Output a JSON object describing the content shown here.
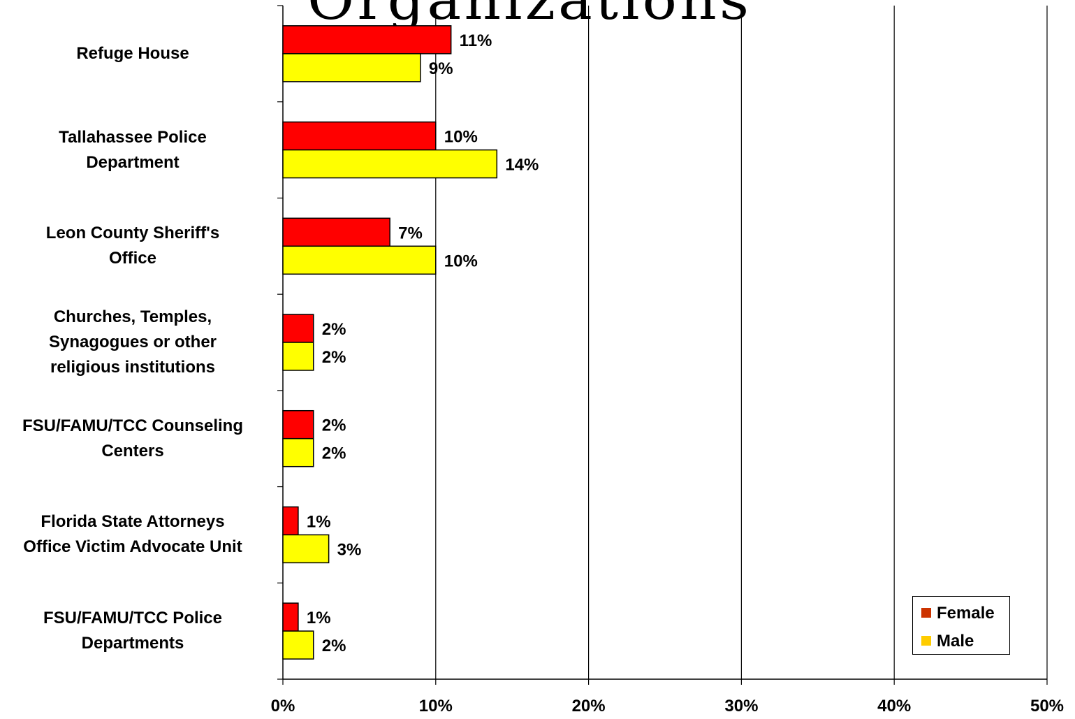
{
  "chart_data": {
    "type": "bar",
    "orientation": "horizontal",
    "title": "",
    "title_fragment": "Organizations",
    "categories": [
      "Refuge House",
      "Tallahassee Police Department",
      "Leon County Sheriff's Office",
      "Churches, Temples, Synagogues or other religious institutions",
      "FSU/FAMU/TCC Counseling Centers",
      "Florida State Attorneys Office Victim Advocate Unit",
      "FSU/FAMU/TCC Police Departments"
    ],
    "category_lines": [
      [
        "Refuge House"
      ],
      [
        "Tallahassee Police",
        "Department"
      ],
      [
        "Leon County Sheriff's",
        "Office"
      ],
      [
        "Churches, Temples,",
        "Synagogues or other",
        "religious institutions"
      ],
      [
        "FSU/FAMU/TCC Counseling",
        "Centers"
      ],
      [
        "Florida State Attorneys",
        "Office Victim Advocate Unit"
      ],
      [
        "FSU/FAMU/TCC Police",
        "Departments"
      ]
    ],
    "series": [
      {
        "name": "Female",
        "color": "#ff0000",
        "values": [
          11,
          10,
          7,
          2,
          2,
          1,
          1
        ]
      },
      {
        "name": "Male",
        "color": "#ffff00",
        "values": [
          9,
          14,
          10,
          2,
          2,
          3,
          2
        ]
      }
    ],
    "value_suffix": "%",
    "xlim": [
      0,
      50
    ],
    "x_ticks": [
      "0%",
      "10%",
      "20%",
      "30%",
      "40%",
      "50%"
    ],
    "xlabel": "",
    "ylabel": "",
    "grid": "vertical",
    "legend": {
      "position": "bottom-right",
      "items": [
        {
          "label": "Female",
          "color": "#cc3300"
        },
        {
          "label": "Male",
          "color": "#ffcc00"
        }
      ]
    }
  }
}
